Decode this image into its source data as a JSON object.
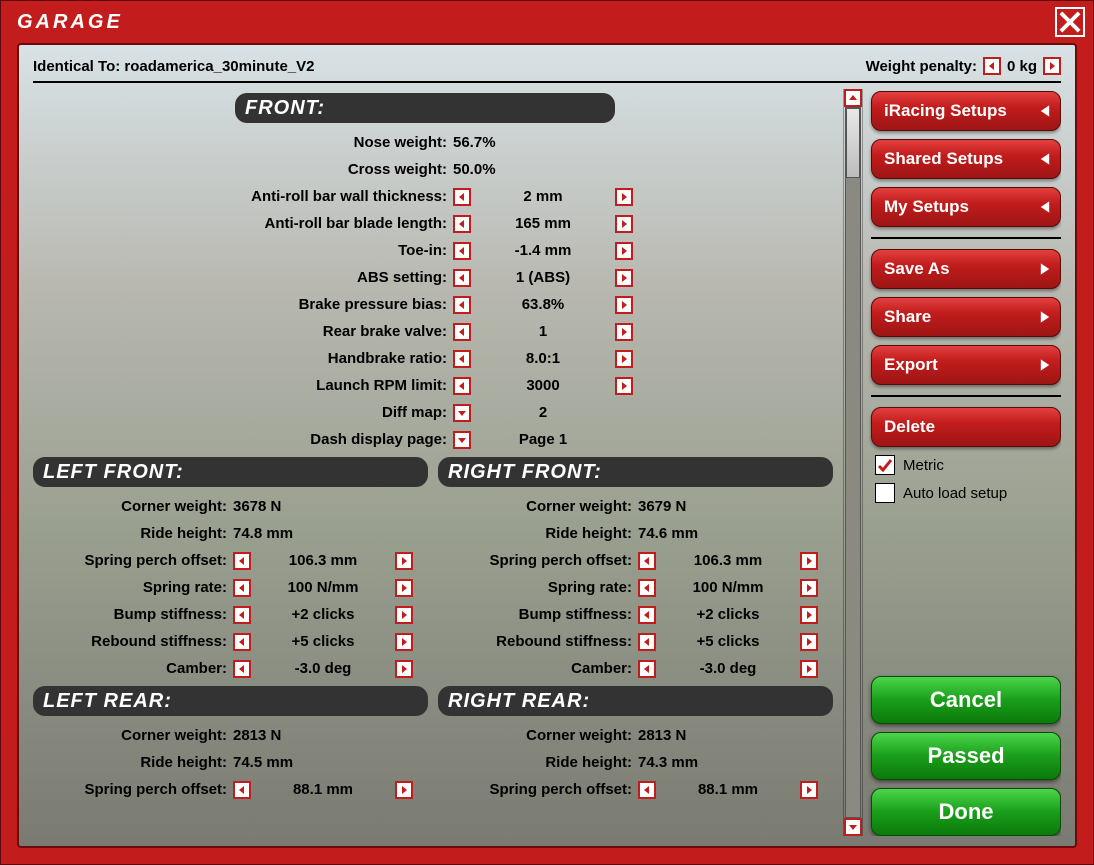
{
  "colors": {
    "red": "#c21c1c",
    "red_dark": "#9e1515",
    "green": "#1a9e1a",
    "header_dark": "#333333",
    "white": "#ffffff",
    "black": "#000000"
  },
  "typography": {
    "title_fontsize": 20,
    "section_fontsize": 20,
    "row_fontsize": 15,
    "side_btn_fontsize": 17,
    "action_btn_fontsize": 22
  },
  "title": "GARAGE",
  "top": {
    "identical_label": "Identical To: roadamerica_30minute_V2",
    "weight_penalty_label": "Weight penalty:",
    "weight_penalty_value": "0 kg"
  },
  "front": {
    "header": "FRONT:",
    "rows": [
      {
        "label": "Nose weight:",
        "value": "56.7%",
        "adjustable": false
      },
      {
        "label": "Cross weight:",
        "value": "50.0%",
        "adjustable": false
      },
      {
        "label": "Anti-roll bar wall thickness:",
        "value": "2 mm",
        "adjustable": true
      },
      {
        "label": "Anti-roll bar blade length:",
        "value": "165 mm",
        "adjustable": true
      },
      {
        "label": "Toe-in:",
        "value": "-1.4 mm",
        "adjustable": true
      },
      {
        "label": "ABS setting:",
        "value": "1 (ABS)",
        "adjustable": true
      },
      {
        "label": "Brake pressure bias:",
        "value": "63.8%",
        "adjustable": true
      },
      {
        "label": "Rear brake valve:",
        "value": "1",
        "adjustable": true
      },
      {
        "label": "Handbrake ratio:",
        "value": "8.0:1",
        "adjustable": true
      },
      {
        "label": "Launch RPM limit:",
        "value": "3000",
        "adjustable": true
      },
      {
        "label": "Diff map:",
        "value": "2",
        "adjustable": true,
        "dropdown": true
      },
      {
        "label": "Dash display page:",
        "value": "Page 1",
        "adjustable": true,
        "dropdown": true
      }
    ]
  },
  "corners": {
    "headers": {
      "lf": "LEFT FRONT:",
      "rf": "RIGHT FRONT:",
      "lr": "LEFT REAR:",
      "rr": "RIGHT REAR:"
    },
    "lf": [
      {
        "label": "Corner weight:",
        "value": "3678 N",
        "adjustable": false
      },
      {
        "label": "Ride height:",
        "value": "74.8 mm",
        "adjustable": false
      },
      {
        "label": "Spring perch offset:",
        "value": "106.3 mm",
        "adjustable": true
      },
      {
        "label": "Spring rate:",
        "value": "100 N/mm",
        "adjustable": true
      },
      {
        "label": "Bump stiffness:",
        "value": "+2 clicks",
        "adjustable": true
      },
      {
        "label": "Rebound stiffness:",
        "value": "+5 clicks",
        "adjustable": true
      },
      {
        "label": "Camber:",
        "value": "-3.0 deg",
        "adjustable": true
      }
    ],
    "rf": [
      {
        "label": "Corner weight:",
        "value": "3679 N",
        "adjustable": false
      },
      {
        "label": "Ride height:",
        "value": "74.6 mm",
        "adjustable": false
      },
      {
        "label": "Spring perch offset:",
        "value": "106.3 mm",
        "adjustable": true
      },
      {
        "label": "Spring rate:",
        "value": "100 N/mm",
        "adjustable": true
      },
      {
        "label": "Bump stiffness:",
        "value": "+2 clicks",
        "adjustable": true
      },
      {
        "label": "Rebound stiffness:",
        "value": "+5 clicks",
        "adjustable": true
      },
      {
        "label": "Camber:",
        "value": "-3.0 deg",
        "adjustable": true
      }
    ],
    "lr": [
      {
        "label": "Corner weight:",
        "value": "2813 N",
        "adjustable": false
      },
      {
        "label": "Ride height:",
        "value": "74.5 mm",
        "adjustable": false
      },
      {
        "label": "Spring perch offset:",
        "value": "88.1 mm",
        "adjustable": true
      }
    ],
    "rr": [
      {
        "label": "Corner weight:",
        "value": "2813 N",
        "adjustable": false
      },
      {
        "label": "Ride height:",
        "value": "74.3 mm",
        "adjustable": false
      },
      {
        "label": "Spring perch offset:",
        "value": "88.1 mm",
        "adjustable": true
      }
    ]
  },
  "sidebar": {
    "iracing_setups": "iRacing Setups",
    "shared_setups": "Shared Setups",
    "my_setups": "My Setups",
    "save_as": "Save As",
    "share": "Share",
    "export": "Export",
    "delete": "Delete",
    "metric": "Metric",
    "auto_load": "Auto load setup",
    "cancel": "Cancel",
    "passed": "Passed",
    "done": "Done"
  },
  "checkboxes": {
    "metric_checked": true,
    "auto_load_checked": false
  }
}
